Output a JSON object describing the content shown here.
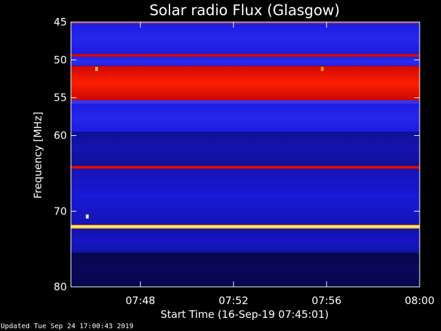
{
  "chart_data": {
    "type": "heatmap",
    "title": "Solar radio Flux (Glasgow)",
    "ylabel": "Frequency [MHz]",
    "xlabel": "Start Time (16-Sep-19 07:45:01)",
    "x_range": [
      "07:45:01",
      "08:00:00"
    ],
    "ylim": [
      45,
      80
    ],
    "y_inverted": true,
    "y_ticks": [
      45,
      50,
      55,
      60,
      70,
      80
    ],
    "y_tick_labels": [
      "45",
      "50",
      "55",
      "60",
      "70",
      "80"
    ],
    "x_ticks": [
      "07:48",
      "07:52",
      "07:56",
      "08:00"
    ],
    "colormap": [
      "#000000",
      "#0a0a6e",
      "#1a1ae0",
      "#3a3aff",
      "#c00000",
      "#ff2000",
      "#ff9a00",
      "#ffff80",
      "#ffffff"
    ],
    "bands": [
      {
        "freq_from": 45.0,
        "freq_to": 45.3,
        "level": 0.45
      },
      {
        "freq_from": 45.3,
        "freq_to": 49.2,
        "level": 0.3
      },
      {
        "freq_from": 49.2,
        "freq_to": 49.6,
        "level": 0.55
      },
      {
        "freq_from": 49.6,
        "freq_to": 50.8,
        "level": 0.32
      },
      {
        "freq_from": 50.8,
        "freq_to": 55.3,
        "level": 0.62
      },
      {
        "freq_from": 55.3,
        "freq_to": 55.8,
        "level": 0.4
      },
      {
        "freq_from": 55.8,
        "freq_to": 59.5,
        "level": 0.3
      },
      {
        "freq_from": 59.5,
        "freq_to": 64.0,
        "level": 0.2
      },
      {
        "freq_from": 64.0,
        "freq_to": 64.4,
        "level": 0.58
      },
      {
        "freq_from": 64.4,
        "freq_to": 71.8,
        "level": 0.24
      },
      {
        "freq_from": 71.8,
        "freq_to": 72.3,
        "level": 0.88
      },
      {
        "freq_from": 72.3,
        "freq_to": 75.5,
        "level": 0.22
      },
      {
        "freq_from": 75.5,
        "freq_to": 80.0,
        "level": 0.1
      }
    ],
    "spots": [
      {
        "time": "07:45:43",
        "freq": 70.7,
        "level": 0.95
      },
      {
        "time": "07:46:07",
        "freq": 51.2,
        "level": 0.8
      },
      {
        "time": "07:55:49",
        "freq": 51.2,
        "level": 0.75
      }
    ]
  },
  "footer": {
    "updated": "Updated Tue Sep 24 17:00:43 2019"
  }
}
